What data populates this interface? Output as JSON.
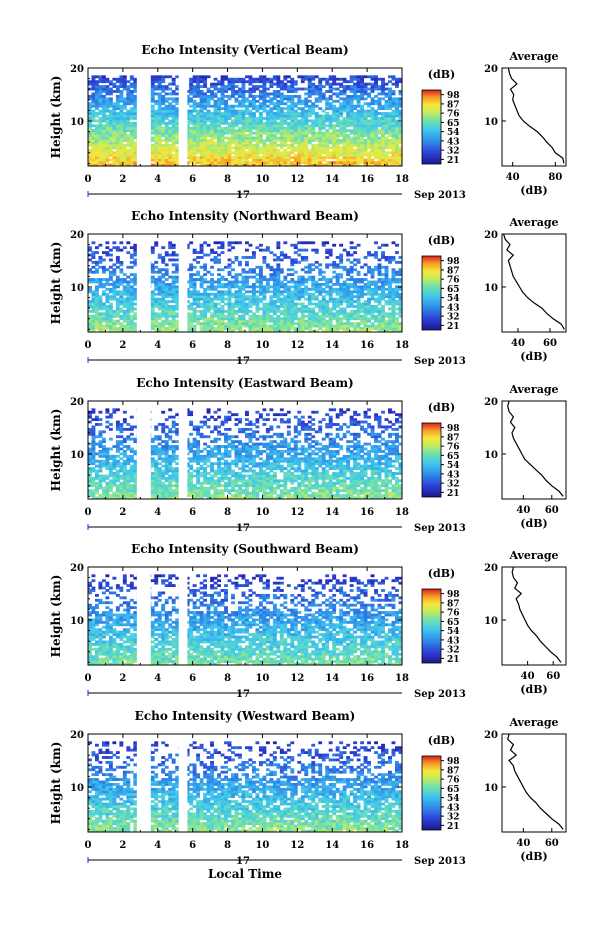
{
  "figure": {
    "xlabel": "Local Time",
    "date_tick": "17",
    "date_suffix": "Sep 2013",
    "colorbar_unit": "(dB)",
    "average_title": "Average",
    "average_xlabel": "(dB)"
  },
  "chart_data": [
    {
      "type": "heatmap",
      "title": "Echo Intensity (Vertical Beam)",
      "ylabel": "Height (km)",
      "xticks": [
        "0",
        "2",
        "4",
        "6",
        "8",
        "10",
        "12",
        "14",
        "16",
        "18"
      ],
      "yticks": [
        "10",
        "20"
      ],
      "xlim": [
        0,
        18
      ],
      "ylim": [
        1.5,
        20
      ],
      "data_gaps_hours": [
        [
          2.8,
          3.6
        ],
        [
          5.2,
          5.7
        ]
      ],
      "colorbar_ticks": [
        "21",
        "32",
        "43",
        "54",
        "65",
        "76",
        "87",
        "98"
      ],
      "colorbar_range": [
        21,
        98
      ],
      "average_profile": {
        "xticks": [
          "40",
          "80"
        ],
        "xlim": [
          30,
          90
        ],
        "height_km": [
          2,
          3,
          4,
          5,
          6,
          7,
          8,
          9,
          10,
          11,
          12,
          13,
          14,
          15,
          16,
          17,
          18,
          19,
          20
        ],
        "db": [
          88,
          87,
          80,
          77,
          72,
          68,
          63,
          56,
          50,
          46,
          44,
          42,
          40,
          41,
          38,
          44,
          39,
          37,
          36
        ]
      }
    },
    {
      "type": "heatmap",
      "title": "Echo Intensity (Northward Beam)",
      "ylabel": "Height (km)",
      "xticks": [
        "0",
        "2",
        "4",
        "6",
        "8",
        "10",
        "12",
        "14",
        "16",
        "18"
      ],
      "yticks": [
        "10",
        "20"
      ],
      "xlim": [
        0,
        18
      ],
      "ylim": [
        1.5,
        20
      ],
      "data_gaps_hours": [
        [
          2.8,
          3.6
        ],
        [
          5.2,
          5.7
        ]
      ],
      "colorbar_ticks": [
        "21",
        "32",
        "43",
        "54",
        "65",
        "76",
        "87",
        "98"
      ],
      "colorbar_range": [
        21,
        98
      ],
      "average_profile": {
        "xticks": [
          "40",
          "60"
        ],
        "xlim": [
          30,
          70
        ],
        "height_km": [
          2,
          3,
          4,
          5,
          6,
          7,
          8,
          9,
          10,
          11,
          12,
          13,
          14,
          15,
          16,
          17,
          18,
          19,
          20
        ],
        "db": [
          69,
          67,
          62,
          58,
          55,
          50,
          46,
          43,
          41,
          39,
          37,
          36,
          35,
          34,
          37,
          33,
          35,
          32,
          31
        ]
      }
    },
    {
      "type": "heatmap",
      "title": "Echo Intensity (Eastward Beam)",
      "ylabel": "Height (km)",
      "xticks": [
        "0",
        "2",
        "4",
        "6",
        "8",
        "10",
        "12",
        "14",
        "16",
        "18"
      ],
      "yticks": [
        "10",
        "20"
      ],
      "xlim": [
        0,
        18
      ],
      "ylim": [
        1.5,
        20
      ],
      "data_gaps_hours": [
        [
          2.8,
          3.6
        ],
        [
          5.2,
          5.7
        ]
      ],
      "colorbar_ticks": [
        "21",
        "32",
        "43",
        "54",
        "65",
        "76",
        "87",
        "98"
      ],
      "colorbar_range": [
        21,
        98
      ],
      "average_profile": {
        "xticks": [
          "40",
          "60"
        ],
        "xlim": [
          25,
          70
        ],
        "height_km": [
          2,
          3,
          4,
          5,
          6,
          7,
          8,
          9,
          10,
          11,
          12,
          13,
          14,
          15,
          16,
          17,
          18,
          19,
          20
        ],
        "db": [
          68,
          65,
          60,
          56,
          53,
          49,
          45,
          41,
          39,
          37,
          35,
          33,
          32,
          34,
          31,
          33,
          30,
          29,
          30
        ]
      }
    },
    {
      "type": "heatmap",
      "title": "Echo Intensity (Southward Beam)",
      "ylabel": "Height (km)",
      "xticks": [
        "0",
        "2",
        "4",
        "6",
        "8",
        "10",
        "12",
        "14",
        "16",
        "18"
      ],
      "yticks": [
        "10",
        "20"
      ],
      "xlim": [
        0,
        18
      ],
      "ylim": [
        1.5,
        20
      ],
      "data_gaps_hours": [
        [
          2.8,
          3.6
        ],
        [
          5.2,
          5.7
        ]
      ],
      "colorbar_ticks": [
        "21",
        "32",
        "43",
        "54",
        "65",
        "76",
        "87",
        "98"
      ],
      "colorbar_range": [
        21,
        98
      ],
      "average_profile": {
        "xticks": [
          "40",
          "60"
        ],
        "xlim": [
          20,
          70
        ],
        "height_km": [
          2,
          3,
          4,
          5,
          6,
          7,
          8,
          9,
          10,
          11,
          12,
          13,
          14,
          15,
          16,
          17,
          18,
          19,
          20
        ],
        "db": [
          66,
          63,
          58,
          54,
          50,
          47,
          43,
          40,
          38,
          36,
          34,
          33,
          31,
          35,
          30,
          32,
          29,
          28,
          29
        ]
      }
    },
    {
      "type": "heatmap",
      "title": "Echo Intensity (Westward Beam)",
      "ylabel": "Height (km)",
      "xticks": [
        "0",
        "2",
        "4",
        "6",
        "8",
        "10",
        "12",
        "14",
        "16",
        "18"
      ],
      "yticks": [
        "10",
        "20"
      ],
      "xlim": [
        0,
        18
      ],
      "ylim": [
        1.5,
        20
      ],
      "data_gaps_hours": [
        [
          2.8,
          3.6
        ],
        [
          5.2,
          5.7
        ]
      ],
      "colorbar_ticks": [
        "21",
        "32",
        "43",
        "54",
        "65",
        "76",
        "87",
        "98"
      ],
      "colorbar_range": [
        21,
        98
      ],
      "average_profile": {
        "xticks": [
          "40",
          "60"
        ],
        "xlim": [
          25,
          70
        ],
        "height_km": [
          2,
          3,
          4,
          5,
          6,
          7,
          8,
          9,
          10,
          11,
          12,
          13,
          14,
          15,
          16,
          17,
          18,
          19,
          20
        ],
        "db": [
          68,
          65,
          60,
          56,
          52,
          49,
          45,
          42,
          40,
          38,
          36,
          34,
          33,
          30,
          35,
          31,
          33,
          29,
          30
        ]
      }
    }
  ]
}
